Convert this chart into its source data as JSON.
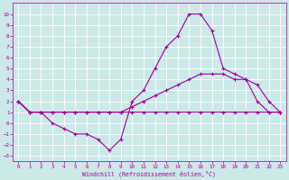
{
  "background_color": "#cce8e8",
  "grid_color": "#aacccc",
  "line_color": "#990099",
  "xlabel": "Windchill (Refroidissement éolien,°C)",
  "xlim": [
    -0.5,
    23.5
  ],
  "ylim": [
    -3.5,
    11
  ],
  "xticks": [
    0,
    1,
    2,
    3,
    4,
    5,
    6,
    7,
    8,
    9,
    10,
    11,
    12,
    13,
    14,
    15,
    16,
    17,
    18,
    19,
    20,
    21,
    22,
    23
  ],
  "yticks": [
    -3,
    -2,
    -1,
    0,
    1,
    2,
    3,
    4,
    5,
    6,
    7,
    8,
    9,
    10
  ],
  "curve_flat_x": [
    0,
    1,
    2,
    3,
    4,
    5,
    6,
    7,
    8,
    9,
    10,
    11,
    12,
    13,
    14,
    15,
    16,
    17,
    18,
    19,
    20,
    21,
    22,
    23
  ],
  "curve_flat_y": [
    2,
    1,
    1,
    1,
    1,
    1,
    1,
    1,
    1,
    1,
    1,
    1,
    1,
    1,
    1,
    1,
    1,
    1,
    1,
    1,
    1,
    1,
    1,
    1
  ],
  "curve_mid_x": [
    0,
    1,
    2,
    3,
    4,
    5,
    6,
    7,
    8,
    9,
    10,
    11,
    12,
    13,
    14,
    15,
    16,
    17,
    18,
    19,
    20,
    21,
    22,
    23
  ],
  "curve_mid_y": [
    2,
    1,
    1,
    1,
    1,
    1,
    1,
    1,
    1,
    1,
    1.5,
    2,
    2.5,
    3,
    3.5,
    4,
    4.5,
    4.5,
    4.5,
    4,
    4,
    3.5,
    2,
    1
  ],
  "curve_peak_x": [
    0,
    1,
    2,
    3,
    4,
    5,
    6,
    7,
    8,
    9,
    10,
    11,
    12,
    13,
    14,
    15,
    16,
    17,
    18,
    19,
    20,
    21,
    22,
    23
  ],
  "curve_peak_y": [
    2,
    1,
    1,
    0,
    -0.5,
    -1,
    -1,
    -1.5,
    -2.5,
    -1.5,
    2,
    3,
    5,
    7,
    8,
    10,
    10,
    8.5,
    5,
    4.5,
    4,
    2,
    1,
    1
  ]
}
